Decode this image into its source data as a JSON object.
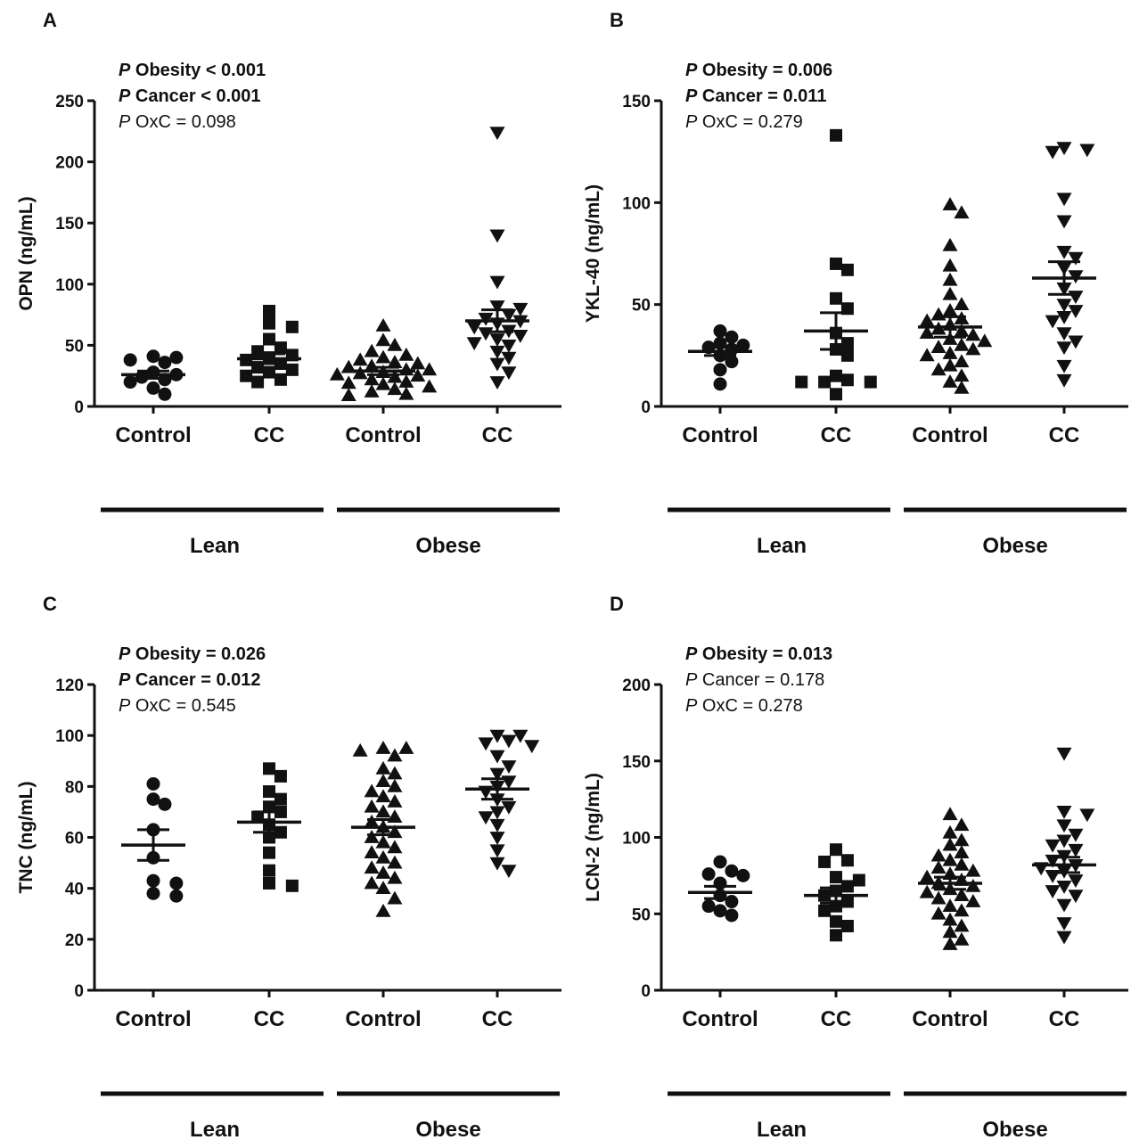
{
  "chart_data": [
    {
      "panel": "A",
      "type": "scatter",
      "ylabel": "OPN (ng/mL)",
      "ylim": [
        0,
        250
      ],
      "yticks": [
        0,
        50,
        100,
        150,
        200,
        250
      ],
      "categories": [
        "Control",
        "CC",
        "Control",
        "CC"
      ],
      "groups": [
        "Lean",
        "Obese"
      ],
      "stats": [
        {
          "prefix": "P",
          "text": " Obesity < 0.001",
          "bold": true
        },
        {
          "prefix": "P",
          "text": " Cancer < 0.001",
          "bold": true
        },
        {
          "prefix": "P",
          "text": " OxC = 0.098",
          "bold": false
        }
      ],
      "series": [
        {
          "marker": "circle",
          "mean": 26,
          "sem": 3,
          "values": [
            40,
            38,
            41,
            36,
            28,
            24,
            22,
            26,
            20,
            15,
            10
          ]
        },
        {
          "marker": "square",
          "mean": 39,
          "sem": 4,
          "values": [
            78,
            68,
            65,
            55,
            48,
            45,
            42,
            40,
            38,
            35,
            32,
            30,
            28,
            25,
            22,
            20
          ]
        },
        {
          "marker": "triangle-up",
          "mean": 29,
          "sem": 3,
          "values": [
            66,
            54,
            50,
            45,
            42,
            40,
            38,
            36,
            35,
            33,
            32,
            30,
            30,
            28,
            27,
            26,
            25,
            24,
            22,
            20,
            19,
            18,
            16,
            14,
            12,
            10,
            9
          ]
        },
        {
          "marker": "triangle-down",
          "mean": 70,
          "sem": 9,
          "values": [
            224,
            140,
            102,
            82,
            80,
            75,
            72,
            70,
            68,
            65,
            62,
            60,
            58,
            55,
            52,
            50,
            45,
            40,
            35,
            28,
            20
          ]
        }
      ]
    },
    {
      "panel": "B",
      "type": "scatter",
      "ylabel": "YKL-40 (ng/mL)",
      "ylim": [
        0,
        150
      ],
      "yticks": [
        0,
        50,
        100,
        150
      ],
      "categories": [
        "Control",
        "CC",
        "Control",
        "CC"
      ],
      "groups": [
        "Lean",
        "Obese"
      ],
      "stats": [
        {
          "prefix": "P",
          "text": " Obesity = 0.006",
          "bold": true
        },
        {
          "prefix": "P",
          "text": " Cancer = 0.011",
          "bold": true
        },
        {
          "prefix": "P",
          "text": " OxC = 0.279",
          "bold": false
        }
      ],
      "series": [
        {
          "marker": "circle",
          "mean": 27,
          "sem": 2,
          "values": [
            37,
            34,
            31,
            30,
            29,
            28,
            25,
            22,
            18,
            11
          ]
        },
        {
          "marker": "square",
          "mean": 37,
          "sem": 9,
          "values": [
            133,
            70,
            67,
            53,
            48,
            36,
            31,
            28,
            25,
            15,
            13,
            12,
            12,
            12,
            6
          ]
        },
        {
          "marker": "triangle-up",
          "mean": 39,
          "sem": 5,
          "values": [
            99,
            95,
            79,
            69,
            62,
            55,
            50,
            47,
            45,
            43,
            42,
            40,
            38,
            37,
            36,
            35,
            33,
            32,
            30,
            29,
            28,
            26,
            25,
            22,
            20,
            18,
            15,
            12,
            9
          ]
        },
        {
          "marker": "triangle-down",
          "mean": 63,
          "sem": 8,
          "values": [
            127,
            126,
            125,
            102,
            91,
            76,
            73,
            68,
            64,
            58,
            54,
            50,
            47,
            44,
            42,
            36,
            32,
            29,
            20,
            13
          ]
        }
      ]
    },
    {
      "panel": "C",
      "type": "scatter",
      "ylabel": "TNC (ng/mL)",
      "ylim": [
        0,
        120
      ],
      "yticks": [
        0,
        20,
        40,
        60,
        80,
        100,
        120
      ],
      "categories": [
        "Control",
        "CC",
        "Control",
        "CC"
      ],
      "groups": [
        "Lean",
        "Obese"
      ],
      "stats": [
        {
          "prefix": "P",
          "text": " Obesity = 0.026",
          "bold": true
        },
        {
          "prefix": "P",
          "text": " Cancer = 0.012",
          "bold": true
        },
        {
          "prefix": "P",
          "text": " OxC = 0.545",
          "bold": false
        }
      ],
      "series": [
        {
          "marker": "circle",
          "mean": 57,
          "sem": 6,
          "values": [
            81,
            75,
            73,
            63,
            52,
            43,
            42,
            38,
            37
          ]
        },
        {
          "marker": "square",
          "mean": 66,
          "sem": 4,
          "values": [
            87,
            84,
            78,
            75,
            72,
            70,
            68,
            65,
            62,
            60,
            54,
            47,
            42,
            41
          ]
        },
        {
          "marker": "triangle-up",
          "mean": 64,
          "sem": 3,
          "values": [
            95,
            95,
            94,
            92,
            87,
            85,
            82,
            80,
            78,
            76,
            74,
            72,
            70,
            68,
            66,
            64,
            62,
            60,
            58,
            56,
            54,
            52,
            50,
            48,
            46,
            44,
            42,
            40,
            36,
            31
          ]
        },
        {
          "marker": "triangle-down",
          "mean": 79,
          "sem": 4,
          "values": [
            100,
            100,
            98,
            97,
            96,
            92,
            88,
            85,
            82,
            80,
            78,
            75,
            72,
            70,
            68,
            65,
            60,
            55,
            50,
            47
          ]
        }
      ]
    },
    {
      "panel": "D",
      "type": "scatter",
      "ylabel": "LCN-2 (ng/mL)",
      "ylim": [
        0,
        200
      ],
      "yticks": [
        0,
        50,
        100,
        150,
        200
      ],
      "categories": [
        "Control",
        "CC",
        "Control",
        "CC"
      ],
      "groups": [
        "Lean",
        "Obese"
      ],
      "stats": [
        {
          "prefix": "P",
          "text": " Obesity = 0.013",
          "bold": true
        },
        {
          "prefix": "P",
          "text": " Cancer = 0.178",
          "bold": false
        },
        {
          "prefix": "P",
          "text": " OxC = 0.278",
          "bold": false
        }
      ],
      "series": [
        {
          "marker": "circle",
          "mean": 64,
          "sem": 4,
          "values": [
            84,
            78,
            76,
            75,
            70,
            62,
            58,
            55,
            52,
            49
          ]
        },
        {
          "marker": "square",
          "mean": 62,
          "sem": 5,
          "values": [
            92,
            85,
            84,
            74,
            72,
            68,
            65,
            62,
            58,
            55,
            52,
            45,
            42,
            36
          ]
        },
        {
          "marker": "triangle-up",
          "mean": 70,
          "sem": 4,
          "values": [
            115,
            108,
            103,
            98,
            95,
            90,
            88,
            85,
            82,
            80,
            78,
            76,
            74,
            72,
            70,
            68,
            66,
            64,
            62,
            60,
            58,
            55,
            52,
            50,
            46,
            42,
            38,
            33,
            30
          ]
        },
        {
          "marker": "triangle-down",
          "mean": 82,
          "sem": 5,
          "values": [
            155,
            117,
            115,
            108,
            102,
            98,
            95,
            92,
            88,
            85,
            82,
            80,
            78,
            75,
            72,
            68,
            65,
            62,
            56,
            44,
            35
          ]
        }
      ]
    }
  ]
}
